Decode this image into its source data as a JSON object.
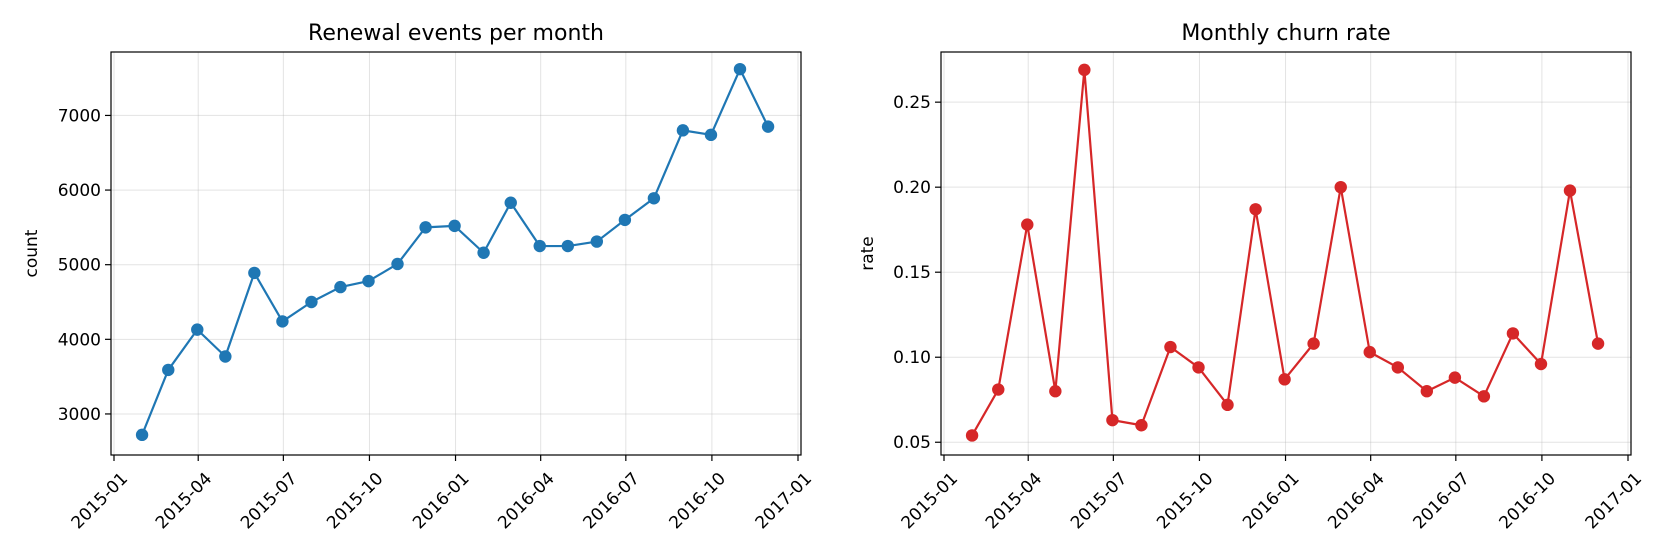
{
  "chart_data": [
    {
      "type": "line",
      "title": "Renewal events per month",
      "ylabel": "count",
      "xlabel": "",
      "color": "#1f77b4",
      "x_start": "2015-01-01",
      "x_end": "2017-01-01",
      "ylim": [
        2450,
        7850
      ],
      "yticks": [
        3000,
        4000,
        5000,
        6000,
        7000
      ],
      "xticks": [
        "2015-01",
        "2015-04",
        "2015-07",
        "2015-10",
        "2016-01",
        "2016-04",
        "2016-07",
        "2016-10",
        "2017-01"
      ],
      "grid": true,
      "series": [
        {
          "x": [
            "2015-01-31",
            "2015-02-28",
            "2015-03-31",
            "2015-04-30",
            "2015-05-31",
            "2015-06-30",
            "2015-07-31",
            "2015-08-31",
            "2015-09-30",
            "2015-10-31",
            "2015-11-30",
            "2015-12-31",
            "2016-01-31",
            "2016-02-29",
            "2016-03-31",
            "2016-04-30",
            "2016-05-31",
            "2016-06-30",
            "2016-07-31",
            "2016-08-31",
            "2016-09-30",
            "2016-10-31",
            "2016-11-30"
          ],
          "values": [
            2720,
            3590,
            4130,
            3770,
            4890,
            4240,
            4500,
            4700,
            4780,
            5010,
            5500,
            5520,
            5160,
            5830,
            5250,
            5250,
            5310,
            5600,
            5890,
            6800,
            6740,
            7620,
            6850
          ]
        }
      ]
    },
    {
      "type": "line",
      "title": "Monthly churn rate",
      "ylabel": "rate",
      "xlabel": "",
      "color": "#d62728",
      "x_start": "2015-01-01",
      "x_end": "2017-01-01",
      "ylim": [
        0.0425,
        0.2795
      ],
      "yticks": [
        0.05,
        0.1,
        0.15,
        0.2,
        0.25
      ],
      "xticks": [
        "2015-01",
        "2015-04",
        "2015-07",
        "2015-10",
        "2016-01",
        "2016-04",
        "2016-07",
        "2016-10",
        "2017-01"
      ],
      "grid": true,
      "series": [
        {
          "x": [
            "2015-01-31",
            "2015-02-28",
            "2015-03-31",
            "2015-04-30",
            "2015-05-31",
            "2015-06-30",
            "2015-07-31",
            "2015-08-31",
            "2015-09-30",
            "2015-10-31",
            "2015-11-30",
            "2015-12-31",
            "2016-01-31",
            "2016-02-29",
            "2016-03-31",
            "2016-04-30",
            "2016-05-31",
            "2016-06-30",
            "2016-07-31",
            "2016-08-31",
            "2016-09-30",
            "2016-10-31",
            "2016-11-30"
          ],
          "values": [
            0.054,
            0.081,
            0.178,
            0.08,
            0.269,
            0.063,
            0.06,
            0.106,
            0.094,
            0.072,
            0.187,
            0.087,
            0.108,
            0.2,
            0.103,
            0.094,
            0.08,
            0.088,
            0.077,
            0.114,
            0.096,
            0.198,
            0.108
          ]
        }
      ]
    }
  ]
}
